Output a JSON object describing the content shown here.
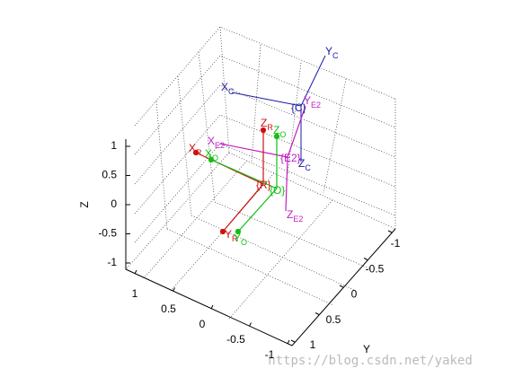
{
  "axes": {
    "z": {
      "label": "Z",
      "ticks": [
        -1,
        -0.5,
        0,
        0.5,
        1
      ]
    },
    "x": {
      "ticks": [
        1,
        0.5,
        0,
        -0.5,
        -1
      ]
    },
    "y": {
      "label": "Y",
      "ticks": [
        -1,
        -0.5,
        0,
        0.5,
        1
      ]
    }
  },
  "frames": [
    {
      "name": "C",
      "color": "#1a1aa8",
      "axes": [
        {
          "main": "X",
          "sub": "C"
        },
        {
          "main": "Y",
          "sub": "C"
        },
        {
          "main": "Z",
          "sub": "C"
        }
      ],
      "origin": "{C}"
    },
    {
      "name": "E2",
      "color": "#c020c0",
      "axes": [
        {
          "main": "X",
          "sub": "E2"
        },
        {
          "main": "Y",
          "sub": "E2"
        },
        {
          "main": "Z",
          "sub": "E2"
        }
      ],
      "origin": "{E2}"
    },
    {
      "name": "R",
      "color": "#d01010",
      "axes": [
        {
          "main": "X",
          "sub": "R"
        },
        {
          "main": "Y",
          "sub": "R"
        },
        {
          "main": "Z",
          "sub": "R"
        }
      ],
      "origin": "{R}"
    },
    {
      "name": "O",
      "color": "#10c010",
      "axes": [
        {
          "main": "X",
          "sub": "O"
        },
        {
          "main": "Y",
          "sub": "O"
        },
        {
          "main": "Z",
          "sub": "O"
        }
      ],
      "origin": "{O}"
    }
  ],
  "watermark": "https://blog.csdn.net/yaked"
}
